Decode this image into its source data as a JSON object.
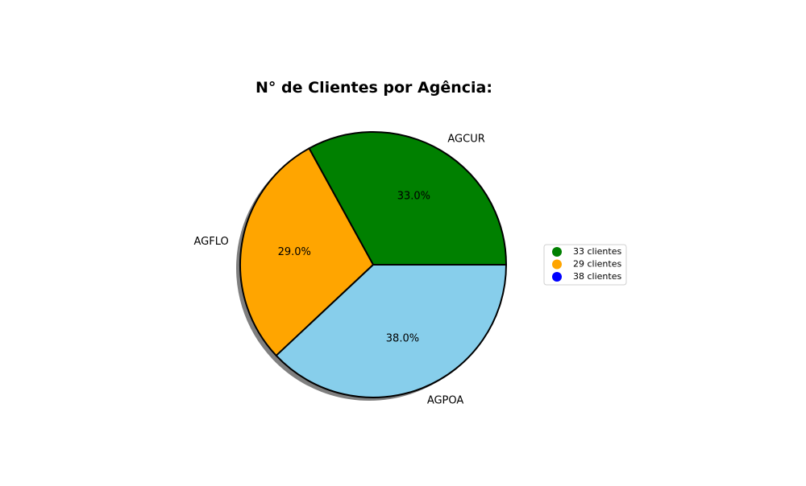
{
  "chart_data": {
    "type": "pie",
    "title": "N° de Clientes por Agência:",
    "categories": [
      "AGCUR",
      "AGFLO",
      "AGPOA"
    ],
    "values": [
      33,
      29,
      38
    ],
    "percent_labels": [
      "33.0%",
      "29.0%",
      "38.0%"
    ],
    "colors": [
      "#008000",
      "#ffa500",
      "#87ceeb"
    ],
    "shadow": true,
    "start_angle_deg": 0,
    "direction": "counterclockwise",
    "legend": {
      "placement": "right",
      "entries": [
        {
          "label": "33 clientes",
          "color": "#008000"
        },
        {
          "label": "29 clientes",
          "color": "#ffa500"
        },
        {
          "label": "38 clientes",
          "color": "#0000ff"
        }
      ]
    }
  }
}
